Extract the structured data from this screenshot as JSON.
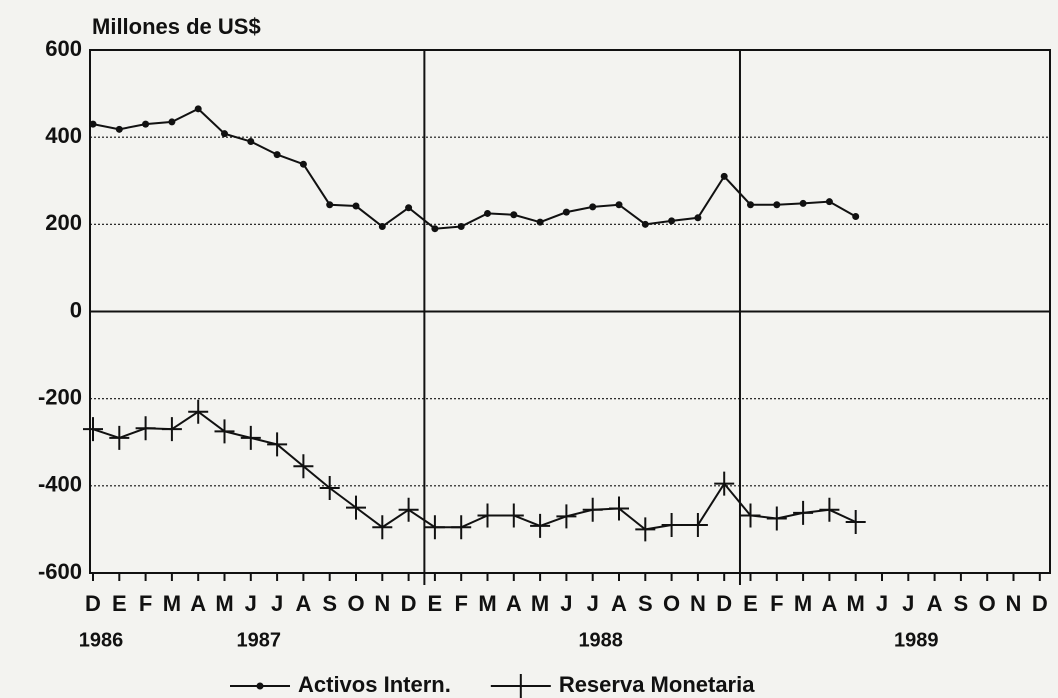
{
  "chart_data": {
    "type": "line",
    "title": "Millones de US$",
    "categories": [
      "D",
      "E",
      "F",
      "M",
      "A",
      "M",
      "J",
      "J",
      "A",
      "S",
      "O",
      "N",
      "D",
      "E",
      "F",
      "M",
      "A",
      "M",
      "J",
      "J",
      "A",
      "S",
      "O",
      "N",
      "D",
      "E",
      "F",
      "M",
      "A",
      "M",
      "J",
      "J",
      "A",
      "S",
      "O",
      "N",
      "D"
    ],
    "years": [
      "1986",
      null,
      null,
      null,
      null,
      null,
      "1987",
      null,
      null,
      null,
      null,
      null,
      null,
      null,
      null,
      null,
      null,
      null,
      null,
      "1988",
      null,
      null,
      null,
      null,
      null,
      null,
      null,
      null,
      null,
      null,
      null,
      "1989",
      null,
      null,
      null,
      null,
      null
    ],
    "series": [
      {
        "name": "Activos Intern.",
        "color": "#111111",
        "marker": "dot",
        "values": [
          430,
          418,
          430,
          435,
          465,
          408,
          390,
          360,
          338,
          245,
          242,
          195,
          238,
          190,
          195,
          225,
          222,
          205,
          228,
          240,
          245,
          200,
          208,
          215,
          310,
          245,
          245,
          248,
          252,
          218,
          null,
          null,
          null,
          null,
          null,
          null,
          null
        ]
      },
      {
        "name": "Reserva Monetaria",
        "color": "#111111",
        "marker": "plus",
        "values": [
          -270,
          -290,
          -268,
          -270,
          -230,
          -275,
          -290,
          -305,
          -355,
          -405,
          -450,
          -495,
          -455,
          -495,
          -495,
          -468,
          -468,
          -492,
          -470,
          -455,
          -452,
          -500,
          -490,
          -490,
          -395,
          -468,
          -475,
          -462,
          -455,
          -483,
          null,
          null,
          null,
          null,
          null,
          null,
          null
        ]
      }
    ],
    "ylim": [
      -600,
      600
    ],
    "yticks": [
      -600,
      -400,
      -200,
      0,
      200,
      400,
      600
    ],
    "grid": true,
    "legend": "bottom"
  }
}
